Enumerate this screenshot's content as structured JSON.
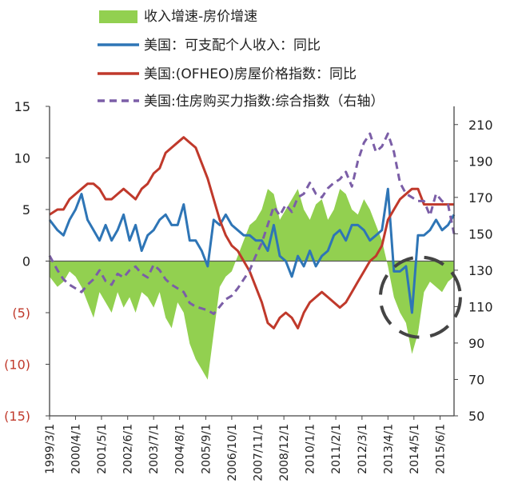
{
  "chart_data": {
    "type": "line",
    "title": "",
    "legend": [
      {
        "name": "收入增速-房价增速",
        "kind": "area",
        "color": "#92d050"
      },
      {
        "name": "美国：可支配个人收入：同比",
        "kind": "line",
        "color": "#2e75b6"
      },
      {
        "name": "美国:(OFHEO)房屋价格指数：同比",
        "kind": "line",
        "color": "#c0392b"
      },
      {
        "name": "美国:住房购买力指数:综合指数（右轴）",
        "kind": "dashed",
        "color": "#7b5ea7"
      }
    ],
    "y_left": {
      "range": [
        -15,
        15
      ],
      "ticks": [
        {
          "value": 15,
          "label": "15"
        },
        {
          "value": 10,
          "label": "10"
        },
        {
          "value": 5,
          "label": "5"
        },
        {
          "value": 0,
          "label": "0"
        },
        {
          "value": -5,
          "label": "(5)"
        },
        {
          "value": -10,
          "label": "(10)"
        },
        {
          "value": -15,
          "label": "(15)"
        }
      ]
    },
    "y_right": {
      "range": [
        50,
        220
      ],
      "ticks": [
        {
          "value": 210,
          "label": "210"
        },
        {
          "value": 190,
          "label": "190"
        },
        {
          "value": 170,
          "label": "170"
        },
        {
          "value": 150,
          "label": "150"
        },
        {
          "value": 130,
          "label": "130"
        },
        {
          "value": 110,
          "label": "110"
        },
        {
          "value": 90,
          "label": "90"
        },
        {
          "value": 70,
          "label": "70"
        },
        {
          "value": 50,
          "label": "50"
        }
      ]
    },
    "x_range": [
      1999.17,
      2016.0
    ],
    "x_ticks": [
      {
        "value": 1999.17,
        "label": "1999/3/1"
      },
      {
        "value": 2000.25,
        "label": "2000/4/1"
      },
      {
        "value": 2001.33,
        "label": "2001/5/1"
      },
      {
        "value": 2002.42,
        "label": "2002/6/1"
      },
      {
        "value": 2003.5,
        "label": "2003/7/1"
      },
      {
        "value": 2004.58,
        "label": "2004/8/1"
      },
      {
        "value": 2005.67,
        "label": "2005/9/1"
      },
      {
        "value": 2006.75,
        "label": "2006/10/1"
      },
      {
        "value": 2007.83,
        "label": "2007/11/1"
      },
      {
        "value": 2008.92,
        "label": "2008/12/1"
      },
      {
        "value": 2010.0,
        "label": "2010/1/1"
      },
      {
        "value": 2011.08,
        "label": "2011/2/1"
      },
      {
        "value": 2012.17,
        "label": "2012/3/1"
      },
      {
        "value": 2013.25,
        "label": "2013/4/1"
      },
      {
        "value": 2014.33,
        "label": "2014/5/1"
      },
      {
        "value": 2015.42,
        "label": "2015/6/1"
      }
    ],
    "series": [
      {
        "name": "收入增速-房价增速",
        "axis": "left",
        "type": "area",
        "color": "#92d050",
        "x": [
          1999.17,
          1999.5,
          1999.75,
          2000.0,
          2000.25,
          2000.5,
          2000.75,
          2001.0,
          2001.25,
          2001.5,
          2001.75,
          2002.0,
          2002.25,
          2002.5,
          2002.75,
          2003.0,
          2003.25,
          2003.5,
          2003.75,
          2004.0,
          2004.25,
          2004.5,
          2004.75,
          2005.0,
          2005.25,
          2005.5,
          2005.75,
          2006.0,
          2006.25,
          2006.5,
          2006.75,
          2007.0,
          2007.25,
          2007.5,
          2007.75,
          2008.0,
          2008.25,
          2008.5,
          2008.75,
          2009.0,
          2009.25,
          2009.5,
          2009.75,
          2010.0,
          2010.25,
          2010.5,
          2010.75,
          2011.0,
          2011.25,
          2011.5,
          2011.75,
          2012.0,
          2012.25,
          2012.5,
          2012.75,
          2013.0,
          2013.25,
          2013.5,
          2013.75,
          2014.0,
          2014.25,
          2014.5,
          2014.75,
          2015.0,
          2015.25,
          2015.5,
          2015.75,
          2016.0
        ],
        "values": [
          -1.5,
          -2.5,
          -2.0,
          -1.0,
          -1.5,
          -2.5,
          -4.0,
          -5.5,
          -3.0,
          -4.0,
          -5.0,
          -3.0,
          -4.5,
          -3.5,
          -5.0,
          -3.0,
          -3.5,
          -4.5,
          -3.0,
          -5.5,
          -6.5,
          -4.0,
          -5.0,
          -8.0,
          -9.5,
          -10.5,
          -11.5,
          -7.0,
          -2.5,
          -1.5,
          -1.0,
          0.5,
          2.0,
          3.5,
          4.0,
          5.0,
          7.0,
          6.5,
          4.0,
          5.0,
          6.0,
          7.0,
          5.0,
          4.0,
          5.5,
          6.0,
          4.0,
          5.0,
          7.0,
          6.5,
          5.0,
          4.5,
          6.0,
          5.0,
          3.5,
          2.0,
          -0.5,
          -3.5,
          -5.0,
          -6.0,
          -9.0,
          -7.0,
          -3.0,
          -2.0,
          -2.5,
          -3.0,
          -2.0,
          -1.5
        ]
      },
      {
        "name": "美国：可支配个人收入：同比",
        "axis": "left",
        "type": "line",
        "color": "#2e75b6",
        "x": [
          1999.17,
          1999.5,
          1999.75,
          2000.0,
          2000.25,
          2000.5,
          2000.75,
          2001.0,
          2001.25,
          2001.5,
          2001.75,
          2002.0,
          2002.25,
          2002.5,
          2002.75,
          2003.0,
          2003.25,
          2003.5,
          2003.75,
          2004.0,
          2004.25,
          2004.5,
          2004.75,
          2005.0,
          2005.25,
          2005.5,
          2005.75,
          2006.0,
          2006.25,
          2006.5,
          2006.75,
          2007.0,
          2007.25,
          2007.5,
          2007.75,
          2008.0,
          2008.25,
          2008.5,
          2008.75,
          2009.0,
          2009.25,
          2009.5,
          2009.75,
          2010.0,
          2010.25,
          2010.5,
          2010.75,
          2011.0,
          2011.25,
          2011.5,
          2011.75,
          2012.0,
          2012.25,
          2012.5,
          2012.75,
          2013.0,
          2013.25,
          2013.5,
          2013.75,
          2014.0,
          2014.25,
          2014.5,
          2014.75,
          2015.0,
          2015.25,
          2015.5,
          2015.75,
          2016.0
        ],
        "values": [
          4.0,
          3.0,
          2.5,
          4.0,
          5.0,
          6.5,
          4.0,
          3.0,
          2.0,
          3.5,
          2.0,
          3.0,
          4.5,
          2.0,
          3.5,
          1.0,
          2.5,
          3.0,
          4.0,
          4.5,
          3.5,
          3.5,
          5.5,
          2.0,
          2.0,
          1.0,
          -0.5,
          4.0,
          3.5,
          4.5,
          3.5,
          3.0,
          2.5,
          2.5,
          2.0,
          2.0,
          1.0,
          3.5,
          0.5,
          0.0,
          -1.5,
          0.5,
          -0.5,
          1.0,
          -0.5,
          0.5,
          1.0,
          2.5,
          3.0,
          2.0,
          3.5,
          3.5,
          3.0,
          2.0,
          2.5,
          3.0,
          7.0,
          -1.0,
          -1.0,
          -0.5,
          -5.0,
          2.5,
          2.5,
          3.0,
          4.0,
          3.0,
          3.5,
          4.5
        ]
      },
      {
        "name": "美国:(OFHEO)房屋价格指数：同比",
        "axis": "left",
        "type": "line",
        "color": "#c0392b",
        "x": [
          1999.17,
          1999.5,
          1999.75,
          2000.0,
          2000.25,
          2000.5,
          2000.75,
          2001.0,
          2001.25,
          2001.5,
          2001.75,
          2002.0,
          2002.25,
          2002.5,
          2002.75,
          2003.0,
          2003.25,
          2003.5,
          2003.75,
          2004.0,
          2004.25,
          2004.5,
          2004.75,
          2005.0,
          2005.25,
          2005.5,
          2005.75,
          2006.0,
          2006.25,
          2006.5,
          2006.75,
          2007.0,
          2007.25,
          2007.5,
          2007.75,
          2008.0,
          2008.25,
          2008.5,
          2008.75,
          2009.0,
          2009.25,
          2009.5,
          2009.75,
          2010.0,
          2010.25,
          2010.5,
          2010.75,
          2011.0,
          2011.25,
          2011.5,
          2011.75,
          2012.0,
          2012.25,
          2012.5,
          2012.75,
          2013.0,
          2013.25,
          2013.5,
          2013.75,
          2014.0,
          2014.25,
          2014.5,
          2014.75,
          2015.0,
          2015.25,
          2015.5,
          2015.75,
          2016.0
        ],
        "values": [
          4.5,
          5.0,
          5.0,
          6.0,
          6.5,
          7.0,
          7.5,
          7.5,
          7.0,
          6.0,
          6.0,
          6.5,
          7.0,
          6.5,
          6.0,
          7.0,
          7.5,
          8.5,
          9.0,
          10.5,
          11.0,
          11.5,
          12.0,
          11.5,
          11.0,
          9.5,
          8.0,
          6.0,
          4.0,
          2.5,
          1.5,
          1.0,
          0.0,
          -1.0,
          -2.5,
          -4.0,
          -6.0,
          -6.5,
          -5.5,
          -5.0,
          -5.5,
          -6.5,
          -5.0,
          -4.0,
          -3.5,
          -3.0,
          -3.5,
          -4.0,
          -4.5,
          -4.0,
          -3.0,
          -2.0,
          -1.0,
          0.0,
          0.5,
          1.5,
          4.0,
          5.0,
          6.0,
          6.5,
          7.0,
          7.0,
          5.5,
          5.5,
          5.5,
          5.5,
          5.5,
          5.5
        ]
      },
      {
        "name": "美国:住房购买力指数:综合指数（右轴）",
        "axis": "right",
        "type": "dashed",
        "color": "#7b5ea7",
        "x": [
          1999.17,
          1999.5,
          1999.75,
          2000.0,
          2000.25,
          2000.5,
          2000.75,
          2001.0,
          2001.25,
          2001.5,
          2001.75,
          2002.0,
          2002.25,
          2002.5,
          2002.75,
          2003.0,
          2003.25,
          2003.5,
          2003.75,
          2004.0,
          2004.25,
          2004.5,
          2004.75,
          2005.0,
          2005.25,
          2005.5,
          2005.75,
          2006.0,
          2006.25,
          2006.5,
          2006.75,
          2007.0,
          2007.25,
          2007.5,
          2007.75,
          2008.0,
          2008.25,
          2008.5,
          2008.75,
          2009.0,
          2009.25,
          2009.5,
          2009.75,
          2010.0,
          2010.25,
          2010.5,
          2010.75,
          2011.0,
          2011.25,
          2011.5,
          2011.75,
          2012.0,
          2012.25,
          2012.5,
          2012.75,
          2013.0,
          2013.25,
          2013.5,
          2013.75,
          2014.0,
          2014.25,
          2014.5,
          2014.75,
          2015.0,
          2015.25,
          2015.5,
          2015.75,
          2016.0
        ],
        "values": [
          138,
          130,
          125,
          122,
          120,
          118,
          122,
          125,
          130,
          124,
          122,
          128,
          126,
          130,
          132,
          128,
          126,
          133,
          130,
          125,
          122,
          120,
          118,
          112,
          110,
          109,
          108,
          106,
          110,
          114,
          116,
          120,
          125,
          130,
          138,
          145,
          155,
          165,
          160,
          166,
          162,
          170,
          172,
          178,
          172,
          170,
          175,
          178,
          180,
          184,
          176,
          190,
          200,
          205,
          195,
          198,
          205,
          195,
          178,
          172,
          170,
          168,
          168,
          160,
          172,
          168,
          166,
          150
        ]
      }
    ],
    "annotation": {
      "shape": "dashed-circle",
      "center_x": 2014.6,
      "center_y_left": -3.5,
      "color": "#444444"
    }
  }
}
